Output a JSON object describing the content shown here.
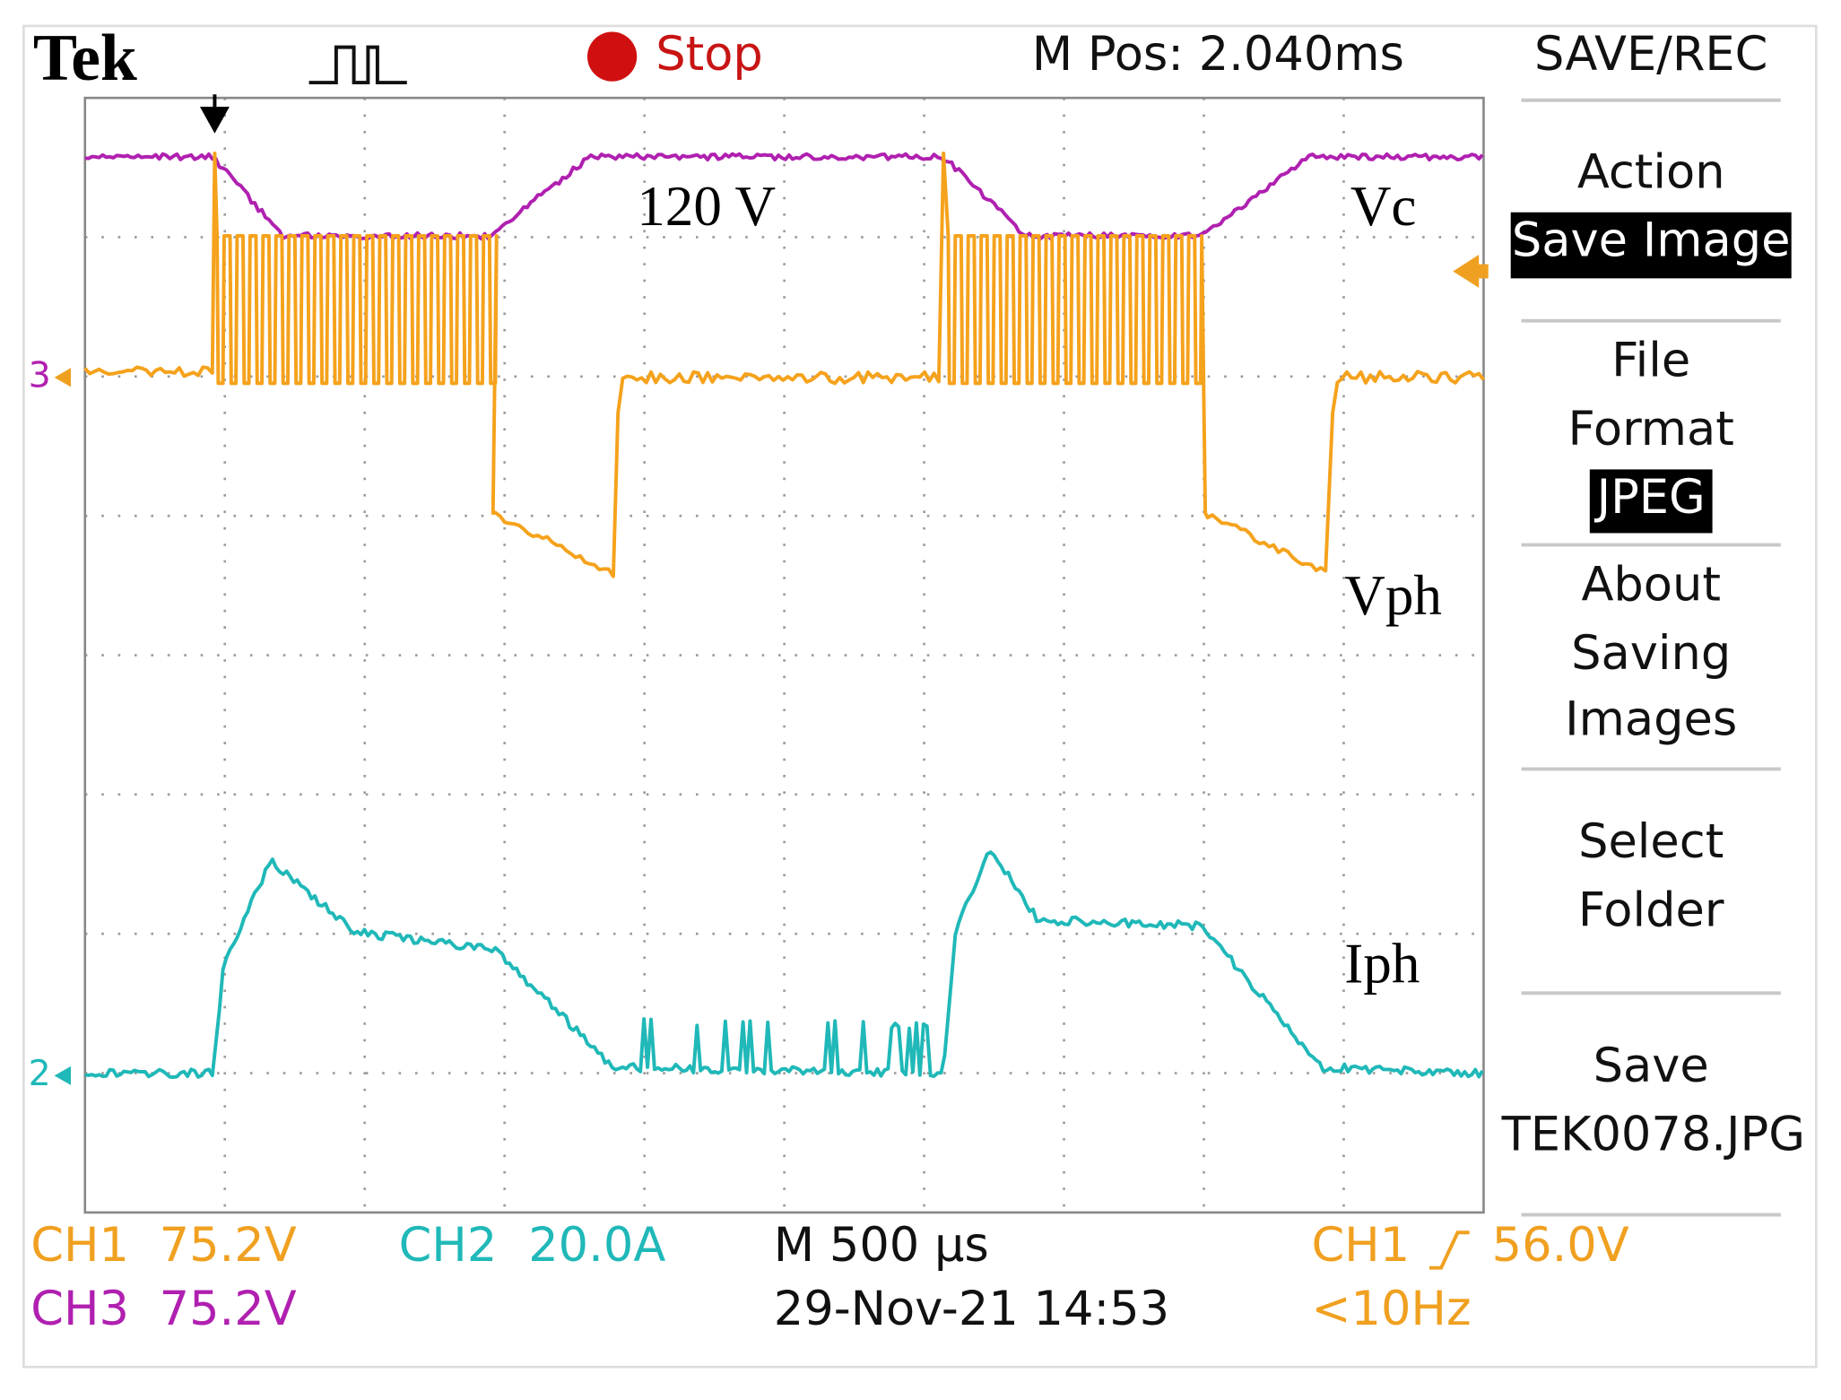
{
  "header": {
    "brand": "Tek",
    "status": "Stop",
    "position": "M Pos: 2.040ms"
  },
  "menu": {
    "title": "SAVE/REC",
    "items": [
      {
        "lines": [
          "Action"
        ],
        "value": "Save Image"
      },
      {
        "lines": [
          "File",
          "Format"
        ],
        "value": "JPEG"
      },
      {
        "lines": [
          "About",
          "Saving",
          "Images"
        ]
      },
      {
        "lines": [
          "Select",
          "Folder"
        ]
      },
      {
        "lines": [
          "Save"
        ],
        "value": "TEK0078.JPG"
      }
    ]
  },
  "annotations": {
    "voltage": "120 V",
    "vc": "Vc",
    "vph": "Vph",
    "iph": "Iph"
  },
  "channel_markers": {
    "ch3": "3",
    "ch2": "2"
  },
  "footer": {
    "ch1": "CH1",
    "ch1_scale": "75.2V",
    "ch2": "CH2",
    "ch2_scale": "20.0A",
    "ch3": "CH3",
    "ch3_scale": "75.2V",
    "timebase": "M 500 µs",
    "timestamp": "29-Nov-21 14:53",
    "trigger_source": "CH1",
    "trigger_level": "56.0V",
    "frequency": "<10Hz"
  }
}
